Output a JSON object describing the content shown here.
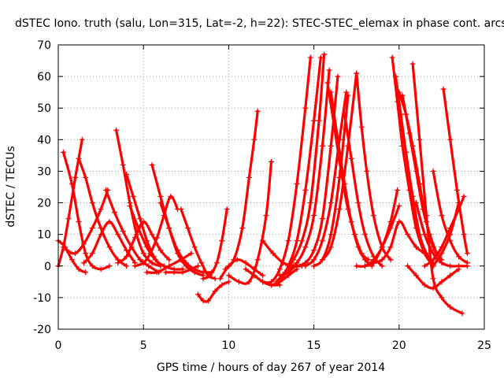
{
  "chart_data": {
    "type": "line",
    "title": "dSTEC Iono. truth (salu, Lon=315, Lat=-2, h=22): STEC-STEC_elemax in phase cont. arcs",
    "xlabel": "GPS time / hours of day 267 of year 2014",
    "ylabel": "dSTEC  / TECUs",
    "xlim": [
      0,
      25
    ],
    "ylim": [
      -20,
      70
    ],
    "xticks": [
      0,
      5,
      10,
      15,
      20,
      25
    ],
    "yticks": [
      -20,
      -10,
      0,
      10,
      20,
      30,
      40,
      50,
      60,
      70
    ],
    "grid": true,
    "legend": "none",
    "marker": "plus",
    "color": "#ff0000",
    "series": [
      {
        "x": [
          0,
          0.3,
          0.6,
          1.0,
          1.4
        ],
        "y": [
          0,
          6,
          15,
          28,
          40
        ]
      },
      {
        "x": [
          0.3,
          0.8,
          1.2,
          1.6,
          2.0,
          2.5,
          3.0
        ],
        "y": [
          36,
          26,
          14,
          4,
          0,
          -1,
          0
        ]
      },
      {
        "x": [
          0,
          0.4,
          0.8,
          1.2,
          1.6
        ],
        "y": [
          8,
          6,
          2,
          -1,
          -2
        ]
      },
      {
        "x": [
          0.5,
          1.0,
          1.5,
          2.0,
          2.5,
          2.9
        ],
        "y": [
          5,
          4,
          7,
          12,
          18,
          24
        ]
      },
      {
        "x": [
          1.2,
          1.6,
          2.0,
          2.5,
          3.0,
          3.5,
          4.0
        ],
        "y": [
          34,
          28,
          20,
          12,
          6,
          2,
          0
        ]
      },
      {
        "x": [
          1.5,
          2.0,
          2.5,
          3.0,
          3.5,
          4.0,
          4.5
        ],
        "y": [
          1,
          4,
          10,
          14,
          10,
          5,
          1
        ]
      },
      {
        "x": [
          2.8,
          3.3,
          3.8,
          4.3,
          4.8,
          5.3,
          5.9
        ],
        "y": [
          24,
          17,
          11,
          6,
          2,
          0,
          -2
        ]
      },
      {
        "x": [
          3.4,
          3.8,
          4.2,
          4.6,
          5.0,
          5.5,
          6.0
        ],
        "y": [
          43,
          32,
          20,
          10,
          4,
          1,
          0
        ]
      },
      {
        "x": [
          3.5,
          4.0,
          4.5,
          5.0,
          5.5,
          6.0,
          6.5
        ],
        "y": [
          1,
          3,
          9,
          14,
          10,
          5,
          2
        ]
      },
      {
        "x": [
          4.0,
          4.4,
          4.8,
          5.2,
          5.6,
          6.0
        ],
        "y": [
          29,
          22,
          15,
          8,
          3,
          0
        ]
      },
      {
        "x": [
          4.2,
          4.7,
          5.2,
          5.7,
          6.2,
          6.8,
          7.3
        ],
        "y": [
          19,
          12,
          6,
          2,
          0,
          -1,
          -1
        ]
      },
      {
        "x": [
          4.5,
          5.0,
          5.4,
          5.8,
          6.2,
          6.6,
          7.0
        ],
        "y": [
          0,
          1,
          4,
          9,
          16,
          22,
          18
        ]
      },
      {
        "x": [
          5.5,
          6.0,
          6.5,
          7.0,
          7.5,
          8.0,
          8.5
        ],
        "y": [
          32,
          22,
          12,
          4,
          0,
          -2,
          -3
        ]
      },
      {
        "x": [
          5.2,
          5.8,
          6.5,
          7.2,
          7.8
        ],
        "y": [
          -2,
          -2,
          0,
          2,
          4
        ]
      },
      {
        "x": [
          6.0,
          6.5,
          7.0,
          7.5,
          8.0,
          8.5,
          9.0
        ],
        "y": [
          20,
          12,
          5,
          1,
          -1,
          -2,
          -2
        ]
      },
      {
        "x": [
          6.3,
          6.8,
          7.3,
          7.8,
          8.2
        ],
        "y": [
          -2,
          -2,
          -2,
          -1,
          0
        ]
      },
      {
        "x": [
          7.2,
          7.6,
          8.0,
          8.4,
          8.8,
          9.2
        ],
        "y": [
          18,
          12,
          6,
          1,
          -3,
          -4
        ]
      },
      {
        "x": [
          8.2,
          8.5,
          8.8,
          9.2,
          9.6,
          10.0
        ],
        "y": [
          -9,
          -11,
          -11,
          -8,
          -6,
          -5
        ]
      },
      {
        "x": [
          8.5,
          8.9,
          9.3,
          9.6,
          9.9
        ],
        "y": [
          -4,
          -3,
          1,
          8,
          18
        ]
      },
      {
        "x": [
          9.5,
          10.0,
          10.5,
          11.0,
          11.5,
          12.0
        ],
        "y": [
          -4,
          0,
          2,
          1,
          -1,
          -3
        ]
      },
      {
        "x": [
          9.8,
          10.3,
          10.8,
          11.2,
          11.5,
          11.7
        ],
        "y": [
          -1,
          2,
          12,
          28,
          40,
          49
        ]
      },
      {
        "x": [
          10.0,
          10.6,
          11.2,
          11.7,
          12.2,
          12.5
        ],
        "y": [
          -3,
          -5,
          -5,
          2,
          16,
          33
        ]
      },
      {
        "x": [
          11.0,
          11.5,
          12.0,
          12.5,
          13.0
        ],
        "y": [
          -1,
          -3,
          -5,
          -6,
          -6
        ]
      },
      {
        "x": [
          11.5,
          12.0,
          12.5,
          13.0,
          13.5,
          14.0
        ],
        "y": [
          -3,
          -5,
          -6,
          -5,
          -3,
          -1
        ]
      },
      {
        "x": [
          12.0,
          12.6,
          13.2,
          13.8,
          14.3
        ],
        "y": [
          8,
          4,
          1,
          0,
          0
        ]
      },
      {
        "x": [
          12.0,
          12.5,
          13.0,
          13.5,
          14.0,
          14.5,
          14.8
        ],
        "y": [
          -5,
          -5,
          -1,
          8,
          26,
          50,
          66
        ]
      },
      {
        "x": [
          12.5,
          13.0,
          13.5,
          14.0,
          14.5,
          15.0,
          15.4
        ],
        "y": [
          -6,
          -5,
          0,
          8,
          24,
          46,
          66
        ]
      },
      {
        "x": [
          12.8,
          13.3,
          13.8,
          14.3,
          14.8,
          15.3,
          15.6
        ],
        "y": [
          -5,
          -2,
          2,
          8,
          20,
          46,
          67
        ]
      },
      {
        "x": [
          13.0,
          13.5,
          14.0,
          14.5,
          15.0,
          15.5,
          15.9
        ],
        "y": [
          -3,
          -2,
          1,
          6,
          16,
          38,
          62
        ]
      },
      {
        "x": [
          13.5,
          14.0,
          14.5,
          15.0,
          15.5,
          16.0,
          16.4
        ],
        "y": [
          -1,
          0,
          1,
          5,
          15,
          38,
          60
        ]
      },
      {
        "x": [
          14.5,
          15.0,
          15.5,
          16.0,
          16.5,
          16.9
        ],
        "y": [
          0,
          2,
          8,
          20,
          40,
          55
        ]
      },
      {
        "x": [
          15.0,
          15.5,
          16.0,
          16.5,
          17.0
        ],
        "y": [
          0,
          2,
          10,
          28,
          54
        ]
      },
      {
        "x": [
          15.5,
          16.0,
          16.5,
          17.0,
          17.5
        ],
        "y": [
          2,
          6,
          18,
          38,
          61
        ]
      },
      {
        "x": [
          15.8,
          16.2,
          16.6,
          17.0,
          17.4,
          17.8,
          18.2
        ],
        "y": [
          58,
          44,
          30,
          18,
          10,
          4,
          2
        ]
      },
      {
        "x": [
          16.0,
          16.4,
          16.8,
          17.2,
          17.6,
          18.0,
          18.4
        ],
        "y": [
          55,
          40,
          26,
          14,
          6,
          2,
          0
        ]
      },
      {
        "x": [
          16.8,
          17.2,
          17.6,
          18.0,
          18.5,
          19.0
        ],
        "y": [
          48,
          34,
          20,
          10,
          3,
          0
        ]
      },
      {
        "x": [
          17.5,
          17.8,
          18.1,
          18.5,
          19.0,
          19.5
        ],
        "y": [
          61,
          44,
          30,
          16,
          6,
          2
        ]
      },
      {
        "x": [
          17.5,
          18.0,
          18.5,
          19.0,
          19.5,
          19.9
        ],
        "y": [
          0,
          0,
          2,
          6,
          14,
          24
        ]
      },
      {
        "x": [
          18.0,
          18.5,
          19.0,
          19.5,
          20.0
        ],
        "y": [
          0,
          1,
          6,
          12,
          19
        ]
      },
      {
        "x": [
          18.5,
          19.0,
          19.5,
          20.0,
          20.5,
          21.0,
          21.5
        ],
        "y": [
          1,
          2,
          6,
          14,
          10,
          6,
          4
        ]
      },
      {
        "x": [
          19.6,
          19.9,
          20.2,
          20.6,
          21.0,
          21.5,
          22.0
        ],
        "y": [
          66,
          52,
          38,
          24,
          12,
          4,
          0
        ]
      },
      {
        "x": [
          19.8,
          20.1,
          20.4,
          20.8,
          21.2,
          21.6,
          22.0
        ],
        "y": [
          60,
          48,
          36,
          22,
          10,
          4,
          1
        ]
      },
      {
        "x": [
          20.0,
          20.4,
          20.8,
          21.2,
          21.6,
          22.0,
          22.5
        ],
        "y": [
          55,
          48,
          38,
          26,
          14,
          6,
          2
        ]
      },
      {
        "x": [
          20.2,
          20.6,
          21.0,
          21.4,
          21.8,
          22.2
        ],
        "y": [
          54,
          42,
          30,
          18,
          10,
          4
        ]
      },
      {
        "x": [
          20.5,
          21.0,
          21.5,
          22.0,
          22.5,
          23.0,
          23.5
        ],
        "y": [
          0,
          -3,
          -6,
          -7,
          -5,
          -3,
          -1
        ]
      },
      {
        "x": [
          20.8,
          21.2,
          21.6,
          22.0,
          22.5,
          23.0,
          23.7
        ],
        "y": [
          64,
          40,
          16,
          -4,
          -10,
          -13,
          -15
        ]
      },
      {
        "x": [
          21.0,
          21.5,
          22.0,
          22.5,
          23.0,
          23.5,
          24.0
        ],
        "y": [
          20,
          10,
          4,
          1,
          0,
          0,
          0
        ]
      },
      {
        "x": [
          21.5,
          22.0,
          22.5,
          23.0,
          23.5,
          23.8
        ],
        "y": [
          0,
          2,
          6,
          12,
          18,
          22
        ]
      },
      {
        "x": [
          22.0,
          22.5,
          23.0,
          23.5,
          24.0
        ],
        "y": [
          30,
          16,
          8,
          3,
          1
        ]
      },
      {
        "x": [
          22.6,
          23.0,
          23.4,
          23.8,
          24.0
        ],
        "y": [
          56,
          40,
          24,
          10,
          4
        ]
      },
      {
        "x": [
          22.0,
          22.5,
          23.0,
          23.5
        ],
        "y": [
          0,
          4,
          10,
          20
        ]
      }
    ]
  }
}
